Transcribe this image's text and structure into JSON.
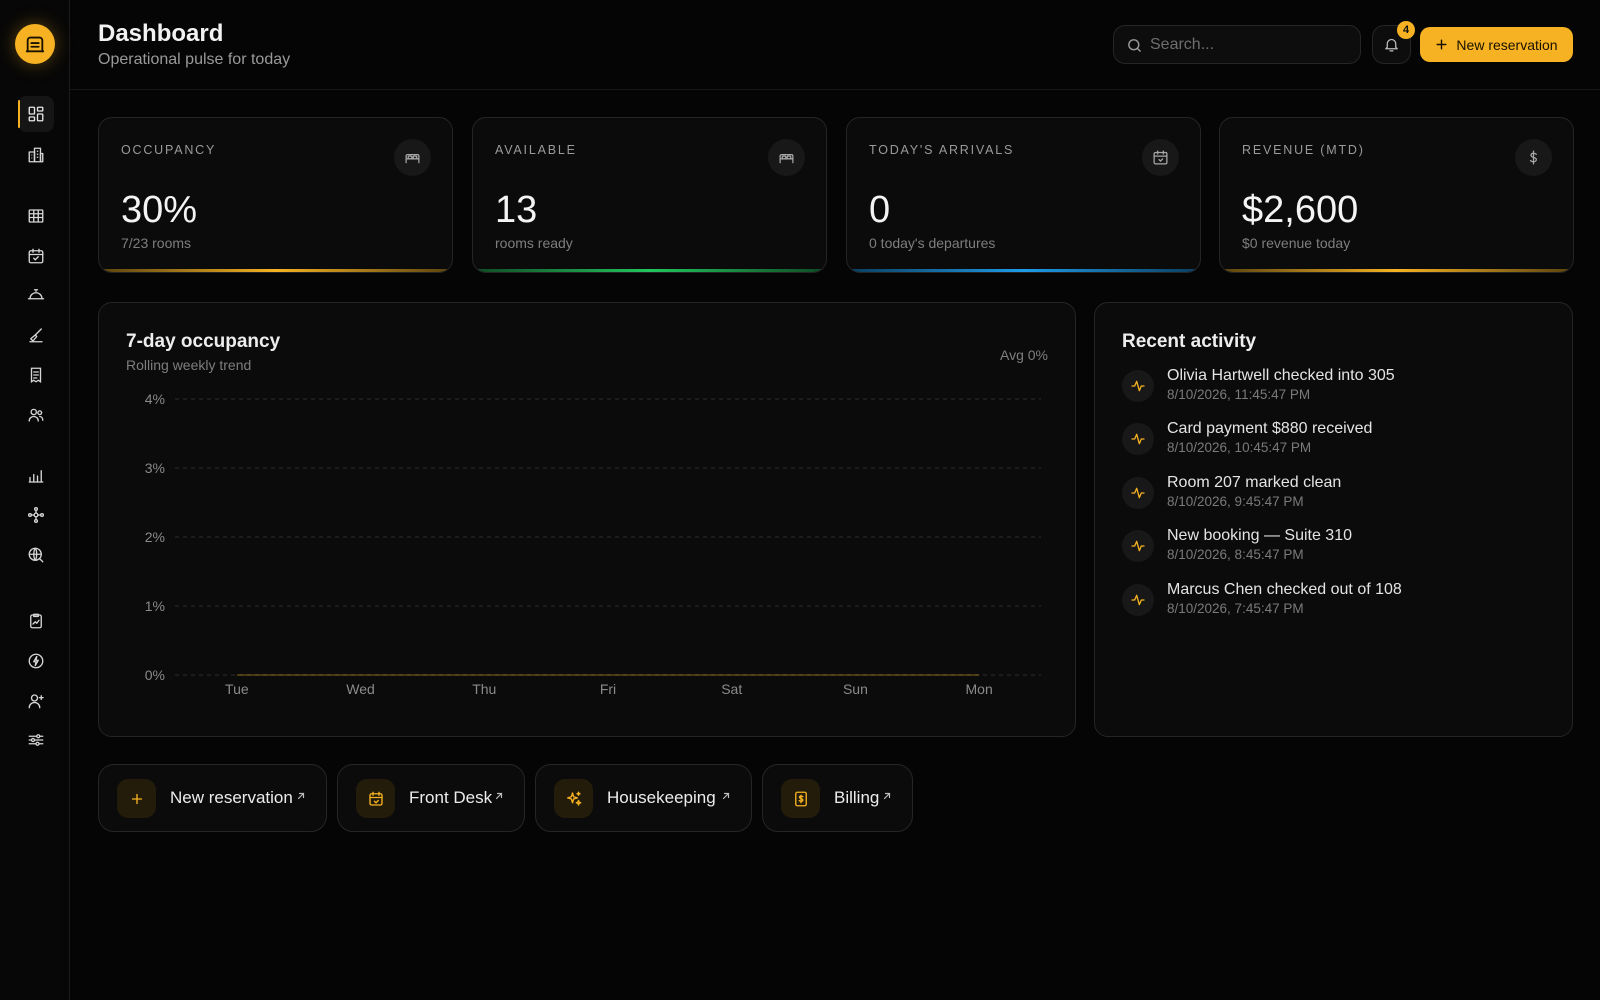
{
  "header": {
    "title": "Dashboard",
    "subtitle": "Operational pulse for today",
    "search_placeholder": "Search...",
    "notification_count": "4",
    "new_reservation_label": "New reservation"
  },
  "sidebar": {
    "logo_icon": "hotel-icon",
    "items": [
      {
        "icon": "dashboard-icon"
      },
      {
        "icon": "buildings-icon"
      },
      {
        "icon": "table-grid-icon"
      },
      {
        "icon": "calendar-check-icon"
      },
      {
        "icon": "concierge-bell-icon"
      },
      {
        "icon": "broom-icon"
      },
      {
        "icon": "receipt-icon"
      },
      {
        "icon": "users-icon"
      },
      {
        "icon": "bar-chart-icon"
      },
      {
        "icon": "network-icon"
      },
      {
        "icon": "globe-search-icon"
      },
      {
        "icon": "report-icon"
      },
      {
        "icon": "lightning-icon"
      },
      {
        "icon": "user-plus-icon"
      },
      {
        "icon": "sliders-icon"
      }
    ]
  },
  "stats": [
    {
      "label": "OCCUPANCY",
      "value": "30%",
      "sub": "7/23 rooms",
      "icon": "bed-icon",
      "accent": "#f6b222"
    },
    {
      "label": "AVAILABLE",
      "value": "13",
      "sub": "rooms ready",
      "icon": "bed-icon",
      "accent": "#22c55e"
    },
    {
      "label": "TODAY'S ARRIVALS",
      "value": "0",
      "sub": "0 today's departures",
      "icon": "calendar-icon",
      "accent": "#1e9be8"
    },
    {
      "label": "REVENUE (MTD)",
      "value": "$2,600",
      "sub": "$0 revenue today",
      "icon": "dollar-icon",
      "accent": "#f6b222"
    }
  ],
  "chart": {
    "title": "7-day occupancy",
    "subtitle": "Rolling weekly trend",
    "avg_label": "Avg 0%"
  },
  "chart_data": {
    "type": "line",
    "categories": [
      "Tue",
      "Wed",
      "Thu",
      "Fri",
      "Sat",
      "Sun",
      "Mon"
    ],
    "values": [
      0,
      0,
      0,
      0,
      0,
      0,
      0
    ],
    "yticks": [
      "0%",
      "1%",
      "2%",
      "3%",
      "4%"
    ],
    "ylim": [
      0,
      4
    ],
    "grid": true,
    "grid_style": "dashed"
  },
  "activity": {
    "title": "Recent activity",
    "items": [
      {
        "text": "Olivia Hartwell checked into 305",
        "time": "8/10/2026, 11:45:47 PM"
      },
      {
        "text": "Card payment $880 received",
        "time": "8/10/2026, 10:45:47 PM"
      },
      {
        "text": "Room 207 marked clean",
        "time": "8/10/2026, 9:45:47 PM"
      },
      {
        "text": "New booking — Suite 310",
        "time": "8/10/2026, 8:45:47 PM"
      },
      {
        "text": "Marcus Chen checked out of 108",
        "time": "8/10/2026, 7:45:47 PM"
      }
    ]
  },
  "quick_actions": [
    {
      "label": "New reservation",
      "icon": "plus-icon"
    },
    {
      "label": "Front Desk",
      "icon": "calendar-check-icon"
    },
    {
      "label": "Housekeeping",
      "icon": "sparkles-icon"
    },
    {
      "label": "Billing",
      "icon": "invoice-icon"
    }
  ]
}
